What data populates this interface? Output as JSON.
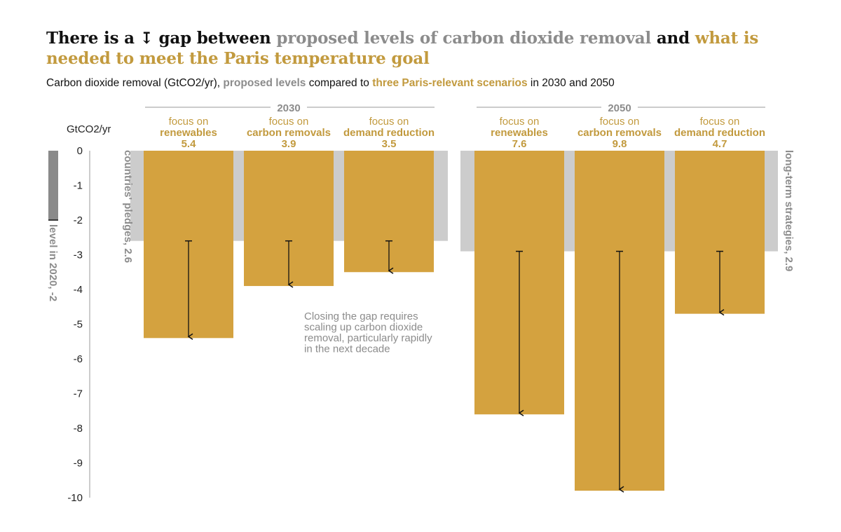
{
  "title": {
    "part1": "There is a ",
    "arrow_glyph": "↧",
    "part2": " gap between ",
    "proposed": "proposed levels of carbon dioxide removal",
    "and": " and ",
    "needed": "what is needed to meet the Paris temperature goal"
  },
  "subtitle": {
    "part1": "Carbon dioxide removal (GtCO2/yr), ",
    "proposed": "proposed levels",
    "part2": " compared to ",
    "scenarios": "three Paris-relevant scenarios",
    "part3": " in 2030 and 2050"
  },
  "colors": {
    "bar": "#d4a23f",
    "pledge": "#cccccc",
    "level2020": "#8a8a8a",
    "gold_text": "#c29a3e",
    "grey_text": "#8c8c8c"
  },
  "chart_data": {
    "type": "bar",
    "ylabel": "GtCO2/yr",
    "ylim": [
      -10,
      0
    ],
    "yticks": [
      "0",
      "-1",
      "-2",
      "-3",
      "-4",
      "-5",
      "-6",
      "-7",
      "-8",
      "-9",
      "-10"
    ],
    "groups": [
      {
        "label": "2030",
        "pledge_value": -2.6,
        "pledge_label": "countries' pledges, 2.6",
        "bars": [
          {
            "line1": "focus on",
            "line2": "renewables",
            "value_label": "5.4",
            "value": -5.4
          },
          {
            "line1": "focus on",
            "line2": "carbon removals",
            "value_label": "3.9",
            "value": -3.9
          },
          {
            "line1": "focus on",
            "line2": "demand reduction",
            "value_label": "3.5",
            "value": -3.5
          }
        ]
      },
      {
        "label": "2050",
        "pledge_value": -2.9,
        "pledge_label": "long-term strategies, 2.9",
        "bars": [
          {
            "line1": "focus on",
            "line2": "renewables",
            "value_label": "7.6",
            "value": -7.6
          },
          {
            "line1": "focus on",
            "line2": "carbon removals",
            "value_label": "9.8",
            "value": -9.8
          },
          {
            "line1": "focus on",
            "line2": "demand reduction",
            "value_label": "4.7",
            "value": -4.7
          }
        ]
      }
    ],
    "level_2020": {
      "value": -2,
      "label": "level in 2020, -2"
    },
    "annotation": [
      "Closing the gap requires",
      "scaling up carbon dioxide",
      "removal, particularly rapidly",
      "in the next decade"
    ]
  }
}
